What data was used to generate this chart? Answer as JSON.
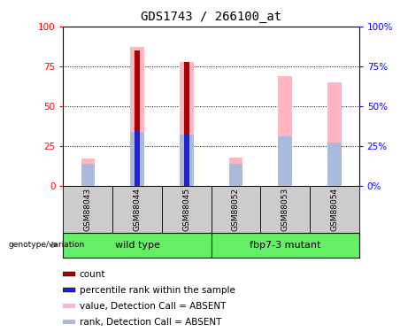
{
  "title": "GDS1743 / 266100_at",
  "samples": [
    "GSM88043",
    "GSM88044",
    "GSM88045",
    "GSM88052",
    "GSM88053",
    "GSM88054"
  ],
  "ylim": [
    0,
    100
  ],
  "yticks": [
    0,
    25,
    50,
    75,
    100
  ],
  "value_bars": [
    17,
    87,
    78,
    18,
    69,
    65
  ],
  "rank_bars": [
    14,
    34,
    32,
    14,
    31,
    27
  ],
  "count_bars": [
    0,
    85,
    78,
    0,
    0,
    0
  ],
  "percentile_bars": [
    0,
    35,
    32,
    0,
    0,
    0
  ],
  "count_color": "#AA0000",
  "percentile_color": "#2222CC",
  "value_color": "#FFB6C1",
  "rank_color": "#AABBDD",
  "wt_group": [
    0,
    1,
    2
  ],
  "mut_group": [
    3,
    4,
    5
  ],
  "wt_label": "wild type",
  "mut_label": "fbp7-3 mutant",
  "group_color": "#66EE66",
  "sample_box_color": "#CCCCCC",
  "legend_items": [
    {
      "color": "#AA0000",
      "label": "count"
    },
    {
      "color": "#2222CC",
      "label": "percentile rank within the sample"
    },
    {
      "color": "#FFB6C1",
      "label": "value, Detection Call = ABSENT"
    },
    {
      "color": "#AABBDD",
      "label": "rank, Detection Call = ABSENT"
    }
  ],
  "genotype_label": "genotype/variation"
}
